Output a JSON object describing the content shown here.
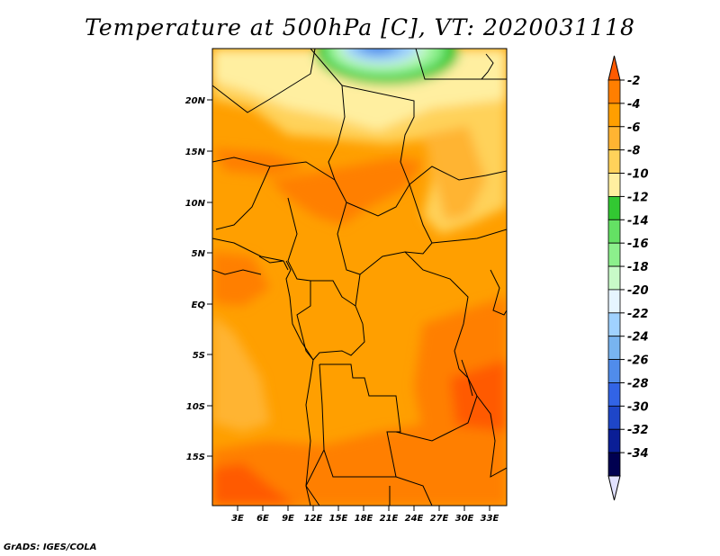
{
  "title": "Temperature at 500hPa [C], VT: 2020031118",
  "credit": "GrADS: IGES/COLA",
  "map": {
    "lat_labels": [
      "20N",
      "15N",
      "10N",
      "5N",
      "EQ",
      "5S",
      "10S",
      "15S"
    ],
    "lon_labels": [
      "3E",
      "6E",
      "9E",
      "12E",
      "15E",
      "18E",
      "21E",
      "24E",
      "27E",
      "30E",
      "33E"
    ]
  },
  "colorbar": {
    "labels": [
      "-2",
      "-4",
      "-6",
      "-8",
      "-10",
      "-12",
      "-14",
      "-16",
      "-18",
      "-20",
      "-22",
      "-24",
      "-26",
      "-28",
      "-30",
      "-32",
      "-34"
    ],
    "colors": [
      "#ff5a00",
      "#ff7f00",
      "#ff9f00",
      "#ffb432",
      "#ffd25a",
      "#ffefa0",
      "#32c832",
      "#64e164",
      "#8cf08c",
      "#c8fac8",
      "#e6f5ff",
      "#a0d2ff",
      "#78b4f0",
      "#508ceb",
      "#3264e6",
      "#1e46c8",
      "#0a1e96",
      "#000050",
      "#e1e1ff"
    ]
  }
}
